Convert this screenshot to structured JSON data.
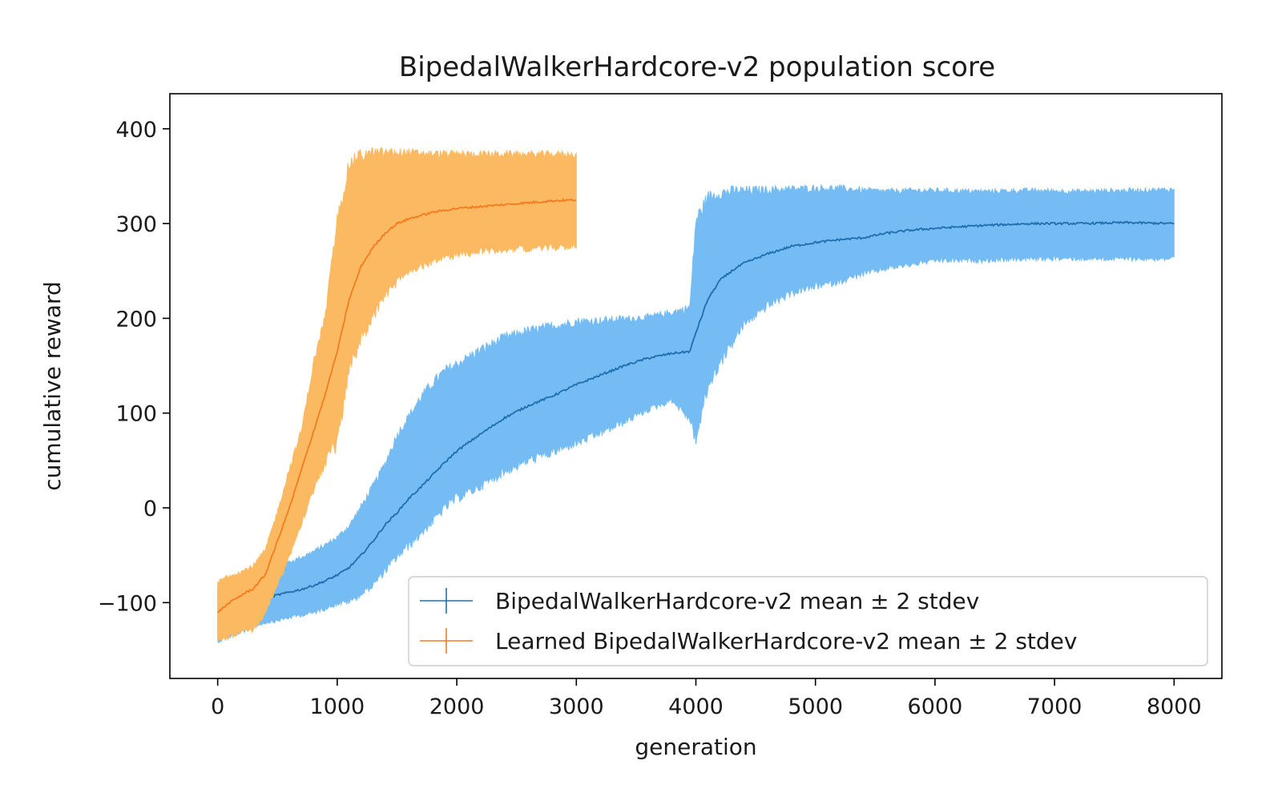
{
  "chart_data": {
    "type": "line",
    "title": "BipedalWalkerHardcore-v2 population score",
    "xlabel": "generation",
    "ylabel": "cumulative reward",
    "xlim": [
      -400,
      8400
    ],
    "ylim": [
      -180,
      437
    ],
    "x_ticks": [
      0,
      1000,
      2000,
      3000,
      4000,
      5000,
      6000,
      7000,
      8000
    ],
    "x_tick_labels": [
      "0",
      "1000",
      "2000",
      "3000",
      "4000",
      "5000",
      "6000",
      "7000",
      "8000"
    ],
    "y_ticks": [
      -100,
      0,
      100,
      200,
      300,
      400
    ],
    "y_tick_labels": [
      "−100",
      "0",
      "100",
      "200",
      "300",
      "400"
    ],
    "grid": false,
    "legend_position": "lower-right",
    "series": [
      {
        "name": "BipedalWalkerHardcore-v2 mean ± 2 stdev",
        "mean_color": "#1f6fb0",
        "band_color": "#74bcf3",
        "x": [
          0,
          100,
          200,
          300,
          400,
          500,
          600,
          700,
          800,
          900,
          1000,
          1100,
          1200,
          1300,
          1400,
          1500,
          1600,
          1700,
          1800,
          1900,
          2000,
          2200,
          2400,
          2600,
          2800,
          3000,
          3200,
          3400,
          3600,
          3800,
          3950,
          4000,
          4100,
          4200,
          4300,
          4400,
          4600,
          4800,
          5000,
          5200,
          5400,
          5600,
          5800,
          6000,
          6400,
          6800,
          7200,
          7600,
          8000
        ],
        "mean": [
          -110,
          -103,
          -101,
          -98,
          -95,
          -92,
          -89,
          -86,
          -82,
          -77,
          -71,
          -63,
          -50,
          -35,
          -18,
          -5,
          10,
          22,
          35,
          48,
          60,
          78,
          95,
          108,
          118,
          130,
          140,
          150,
          158,
          163,
          165,
          185,
          220,
          240,
          250,
          258,
          268,
          276,
          280,
          283,
          285,
          290,
          293,
          295,
          298,
          300,
          300,
          301,
          300
        ],
        "upper": [
          -85,
          -80,
          -75,
          -70,
          -66,
          -62,
          -58,
          -53,
          -47,
          -40,
          -32,
          -20,
          0,
          22,
          45,
          75,
          95,
          115,
          130,
          143,
          150,
          165,
          178,
          185,
          190,
          195,
          196,
          198,
          200,
          205,
          210,
          300,
          325,
          330,
          332,
          333,
          334,
          335,
          336,
          336,
          334,
          333,
          334,
          334,
          333,
          334,
          333,
          334,
          335
        ],
        "lower": [
          -140,
          -135,
          -130,
          -125,
          -120,
          -118,
          -115,
          -112,
          -110,
          -105,
          -100,
          -98,
          -90,
          -80,
          -65,
          -50,
          -38,
          -25,
          -12,
          2,
          12,
          25,
          40,
          52,
          60,
          70,
          80,
          92,
          105,
          115,
          95,
          75,
          130,
          155,
          175,
          195,
          215,
          228,
          235,
          240,
          248,
          254,
          258,
          262,
          262,
          264,
          264,
          264,
          264
        ]
      },
      {
        "name": "Learned BipedalWalkerHardcore-v2 mean ± 2 stdev",
        "mean_color": "#f47b20",
        "band_color": "#fbba62",
        "x": [
          0,
          50,
          100,
          200,
          300,
          400,
          500,
          600,
          700,
          800,
          900,
          1000,
          1100,
          1200,
          1300,
          1400,
          1500,
          1600,
          1800,
          2000,
          2200,
          2400,
          2600,
          2800,
          3000
        ],
        "mean": [
          -110,
          -105,
          -100,
          -92,
          -85,
          -70,
          -35,
          0,
          40,
          80,
          120,
          165,
          220,
          255,
          275,
          290,
          300,
          305,
          312,
          316,
          318,
          320,
          322,
          324,
          325
        ],
        "upper": [
          -80,
          -75,
          -72,
          -68,
          -62,
          -45,
          -5,
          40,
          80,
          150,
          200,
          300,
          360,
          370,
          372,
          373,
          373,
          373,
          372,
          372,
          372,
          372,
          372,
          372,
          372
        ],
        "lower": [
          -140,
          -138,
          -135,
          -130,
          -128,
          -110,
          -80,
          -50,
          -15,
          20,
          50,
          70,
          150,
          180,
          205,
          225,
          240,
          250,
          262,
          268,
          272,
          274,
          275,
          276,
          278
        ]
      }
    ]
  }
}
